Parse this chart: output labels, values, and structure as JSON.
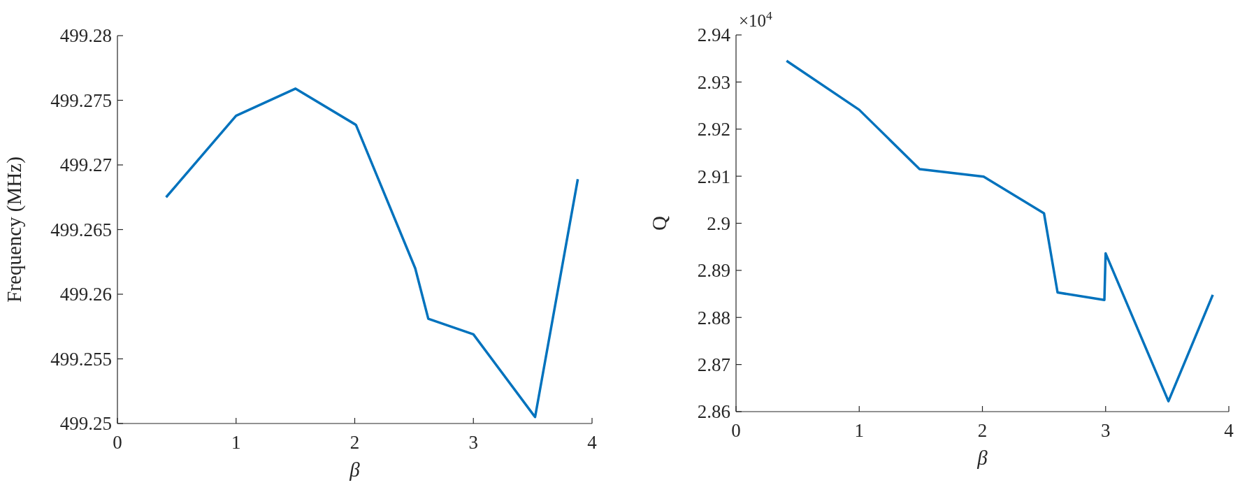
{
  "chart_data": [
    {
      "type": "line",
      "xlabel": "β",
      "ylabel": "Frequency (MHz)",
      "x": [
        0.41,
        1.0,
        1.5,
        2.01,
        2.51,
        2.62,
        3.0,
        3.52,
        3.88
      ],
      "series": [
        {
          "color": "#0072bd",
          "values": [
            499.2675,
            499.2738,
            499.2759,
            499.2731,
            499.262,
            499.2581,
            499.2569,
            499.2505,
            499.2689
          ]
        }
      ],
      "xlim": [
        0,
        4
      ],
      "xticks": [
        0,
        1,
        2,
        3,
        4
      ],
      "ylim": [
        499.25,
        499.28
      ],
      "yticks": [
        499.25,
        499.255,
        499.26,
        499.265,
        499.27,
        499.275,
        499.28
      ],
      "grid": false
    },
    {
      "type": "line",
      "xlabel": "β",
      "ylabel": "Q",
      "annotations": [
        "×10$^{4}$"
      ],
      "x": [
        0.41,
        1.0,
        1.49,
        2.01,
        2.5,
        2.61,
        2.99,
        3.0,
        3.51,
        3.87
      ],
      "series": [
        {
          "color": "#0072bd",
          "values": [
            2.9345,
            2.9241,
            2.9115,
            2.9099,
            2.9021,
            2.8853,
            2.8837,
            2.8936,
            2.8622,
            2.8848
          ]
        }
      ],
      "xlim": [
        0,
        4
      ],
      "xticks": [
        0,
        1,
        2,
        3,
        4
      ],
      "ylim": [
        2.86,
        2.94
      ],
      "yticks": [
        2.86,
        2.87,
        2.88,
        2.89,
        2.9,
        2.91,
        2.92,
        2.93,
        2.94
      ],
      "grid": false
    }
  ]
}
